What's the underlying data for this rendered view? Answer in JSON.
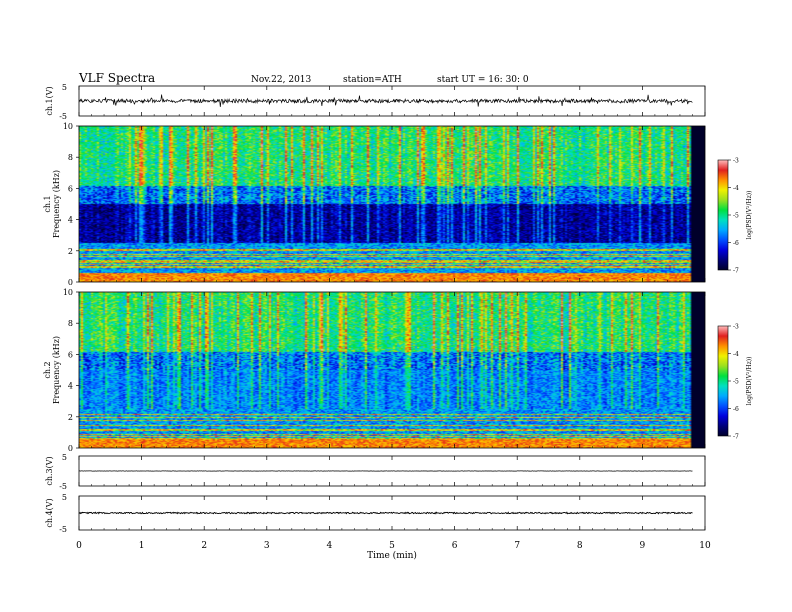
{
  "header": {
    "title": "VLF  Spectra",
    "date": "Nov.22, 2013",
    "station": "station=ATH",
    "start": "start  UT  =    16: 30: 0"
  },
  "colors": {
    "spectrum": [
      "#00002a",
      "#00007a",
      "#0000dd",
      "#0050ff",
      "#00aaff",
      "#00e0c0",
      "#00e040",
      "#9ae020",
      "#f0f000",
      "#ff9000",
      "#e02020",
      "#ffbcbc"
    ]
  },
  "chart_data": [
    {
      "type": "line",
      "panel": "ch1_waveform",
      "ylabel": "ch.1(V)",
      "yticks": [
        "5",
        "-5"
      ],
      "ylim": [
        -5,
        5
      ],
      "xlim": [
        0,
        9.8
      ],
      "baseline_mean": 0.0,
      "noise_amplitude": 0.6,
      "spike_amplitude": 1.8
    },
    {
      "type": "heatmap",
      "panel": "ch1_spectrogram",
      "ylabel": "Frequency  (kHz)",
      "channel_label": "ch.1",
      "yticks": [
        "0",
        "2",
        "4",
        "6",
        "8",
        "10"
      ],
      "ylim": [
        0,
        10
      ],
      "xlim": [
        0,
        9.8
      ],
      "colorbar": {
        "label": "log(PSD(V²/Hz))",
        "ticks": [
          "-3",
          "-4",
          "-5",
          "-6",
          "-7"
        ],
        "range": [
          -7,
          -3
        ]
      }
    },
    {
      "type": "heatmap",
      "panel": "ch2_spectrogram",
      "ylabel": "Frequency  (kHz)",
      "channel_label": "ch.2",
      "yticks": [
        "0",
        "2",
        "4",
        "6",
        "8",
        "10"
      ],
      "ylim": [
        0,
        10
      ],
      "xlim": [
        0,
        9.8
      ],
      "colorbar": {
        "label": "log(PSD(V²/Hz))",
        "ticks": [
          "-3",
          "-4",
          "-5",
          "-6",
          "-7"
        ],
        "range": [
          -7,
          -3
        ]
      }
    },
    {
      "type": "line",
      "panel": "ch3_waveform",
      "ylabel": "ch.3(V)",
      "yticks": [
        "5",
        "-5"
      ],
      "ylim": [
        -5,
        5
      ],
      "xlim": [
        0,
        9.8
      ],
      "baseline_mean": 0.0,
      "noise_amplitude": 0.05
    },
    {
      "type": "line",
      "panel": "ch4_waveform",
      "ylabel": "ch.4(V)",
      "yticks": [
        "5",
        "-5"
      ],
      "ylim": [
        -5,
        5
      ],
      "xlim": [
        0,
        9.8
      ],
      "baseline_mean": 0.0,
      "noise_amplitude": 0.2
    }
  ],
  "xaxis": {
    "label": "Time  (min)",
    "ticks": [
      "0",
      "1",
      "2",
      "3",
      "4",
      "5",
      "6",
      "7",
      "8",
      "9",
      "10"
    ],
    "range": [
      0,
      10
    ]
  }
}
